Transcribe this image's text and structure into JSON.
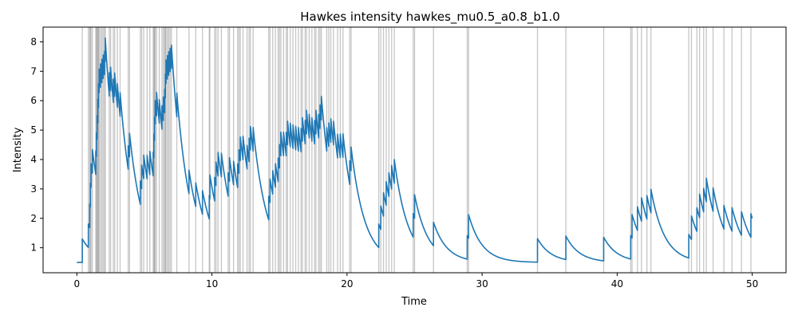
{
  "chart_data": {
    "type": "line",
    "title": "Hawkes intensity hawkes_mu0.5_a0.8_b1.0",
    "xlabel": "Time",
    "ylabel": "Intensity",
    "xlim": [
      -2.5,
      52.5
    ],
    "ylim": [
      0.15,
      8.5
    ],
    "xticks": [
      0,
      10,
      20,
      30,
      40,
      50
    ],
    "yticks": [
      1,
      2,
      3,
      4,
      5,
      6,
      7,
      8
    ],
    "grid": false,
    "line_color": "#1f77b4",
    "event_line_color": "#808080",
    "params": {
      "mu": 0.5,
      "alpha": 0.8,
      "beta": 1.0
    },
    "t_end": 50,
    "events": [
      0.4,
      0.85,
      0.95,
      1.0,
      1.05,
      1.15,
      1.4,
      1.45,
      1.5,
      1.55,
      1.6,
      1.65,
      1.75,
      1.85,
      1.95,
      2.05,
      2.1,
      2.4,
      2.5,
      2.7,
      2.8,
      3.0,
      3.2,
      3.8,
      3.9,
      4.7,
      4.8,
      4.95,
      5.2,
      5.4,
      5.65,
      5.7,
      5.75,
      5.8,
      5.9,
      6.1,
      6.3,
      6.4,
      6.5,
      6.55,
      6.6,
      6.7,
      6.8,
      6.9,
      7.0,
      7.4,
      8.3,
      8.8,
      9.3,
      9.8,
      9.85,
      10.2,
      10.3,
      10.45,
      10.7,
      11.2,
      11.3,
      11.6,
      11.9,
      12.0,
      12.1,
      12.3,
      12.6,
      12.75,
      12.85,
      13.05,
      14.2,
      14.3,
      14.5,
      14.7,
      14.9,
      15.0,
      15.1,
      15.3,
      15.5,
      15.6,
      15.8,
      16.0,
      16.2,
      16.4,
      16.6,
      16.7,
      16.9,
      17.0,
      17.2,
      17.4,
      17.6,
      17.7,
      17.9,
      18.0,
      18.1,
      18.5,
      18.65,
      18.8,
      19.0,
      19.3,
      19.5,
      19.7,
      20.2,
      20.3,
      22.35,
      22.5,
      22.7,
      22.9,
      23.1,
      23.3,
      23.5,
      24.9,
      25.0,
      26.4,
      28.9,
      29.0,
      34.1,
      36.2,
      39.0,
      41.0,
      41.1,
      41.5,
      41.8,
      42.2,
      42.5,
      45.3,
      45.5,
      45.9,
      46.1,
      46.4,
      46.6,
      47.1,
      47.9,
      48.5,
      49.2,
      49.9
    ]
  }
}
